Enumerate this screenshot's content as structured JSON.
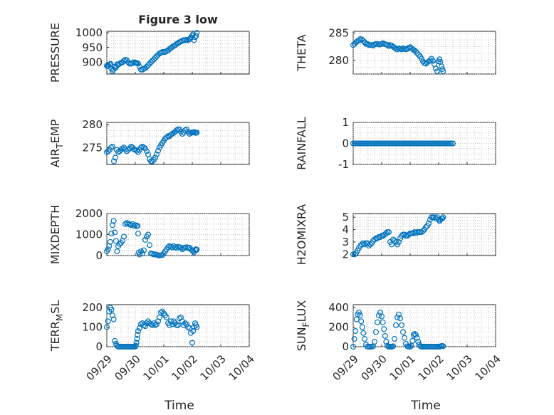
{
  "chart_data": [
    {
      "id": "pressure",
      "type": "scatter",
      "title": "Figure 3 low",
      "ylabel": "PRESSURE",
      "ylabel_sub": "",
      "xlabel": "",
      "ylim": [
        860,
        1005
      ],
      "yticks": [
        900,
        950,
        1000
      ],
      "xlim": [
        0,
        5
      ],
      "xtick_labels": [],
      "grid": true,
      "x": [
        0,
        0.03,
        0.06,
        0.1,
        0.13,
        0.16,
        0.2,
        0.23,
        0.27,
        0.3,
        0.33,
        0.37,
        0.4,
        0.45,
        0.5,
        0.55,
        0.6,
        0.65,
        0.7,
        0.75,
        0.8,
        0.85,
        0.9,
        0.95,
        1.0,
        1.03,
        1.07,
        1.1,
        1.15,
        1.2,
        1.25,
        1.3,
        1.35,
        1.4,
        1.45,
        1.5,
        1.55,
        1.6,
        1.65,
        1.7,
        1.75,
        1.8,
        1.85,
        1.9,
        1.95,
        2.0,
        2.05,
        2.1,
        2.15,
        2.2,
        2.25,
        2.3,
        2.35,
        2.4,
        2.45,
        2.5,
        2.55,
        2.6,
        2.65,
        2.7,
        2.75,
        2.8,
        2.85,
        2.9,
        2.93,
        2.96,
        3.0,
        3.03,
        3.06,
        3.1,
        3.13,
        3.16
      ],
      "y": [
        888,
        887,
        888,
        892,
        895,
        878,
        870,
        875,
        885,
        880,
        885,
        893,
        892,
        895,
        898,
        900,
        905,
        908,
        907,
        900,
        895,
        895,
        897,
        900,
        899,
        898,
        897,
        895,
        885,
        875,
        875,
        878,
        880,
        885,
        890,
        895,
        900,
        905,
        910,
        915,
        920,
        925,
        930,
        932,
        935,
        935,
        935,
        938,
        940,
        945,
        948,
        952,
        955,
        958,
        962,
        965,
        968,
        970,
        973,
        975,
        975,
        976,
        975,
        978,
        980,
        985,
        990,
        995,
        975,
        985,
        990,
        1000
      ]
    },
    {
      "id": "theta",
      "type": "scatter",
      "title": "",
      "ylabel": "THETA",
      "ylabel_sub": "",
      "xlabel": "",
      "ylim": [
        277.5,
        285.3
      ],
      "yticks": [
        280,
        285
      ],
      "xlim": [
        0,
        5
      ],
      "xtick_labels": [],
      "grid": true,
      "x": [
        0,
        0.05,
        0.1,
        0.15,
        0.2,
        0.25,
        0.3,
        0.35,
        0.4,
        0.45,
        0.5,
        0.55,
        0.6,
        0.65,
        0.7,
        0.75,
        0.8,
        0.85,
        0.9,
        0.95,
        1.0,
        1.05,
        1.1,
        1.15,
        1.2,
        1.25,
        1.3,
        1.35,
        1.4,
        1.45,
        1.5,
        1.55,
        1.6,
        1.65,
        1.7,
        1.75,
        1.8,
        1.85,
        1.9,
        1.95,
        2.0,
        2.05,
        2.1,
        2.15,
        2.2,
        2.25,
        2.3,
        2.35,
        2.4,
        2.45,
        2.5,
        2.55,
        2.6,
        2.65,
        2.7,
        2.75,
        2.8,
        2.85,
        2.9,
        2.95,
        3.0,
        3.03,
        3.06,
        3.1,
        3.13,
        3.16
      ],
      "y": [
        282.8,
        283.0,
        283.3,
        283.5,
        283.6,
        283.9,
        283.8,
        283.6,
        283.3,
        283.0,
        283.0,
        282.8,
        282.8,
        282.8,
        282.7,
        282.9,
        283.0,
        283.0,
        282.9,
        282.9,
        283.0,
        283.1,
        283.0,
        282.9,
        282.8,
        282.6,
        282.8,
        282.7,
        282.5,
        282.3,
        282.1,
        282.0,
        282.2,
        282.1,
        282.0,
        282.2,
        282.1,
        282.0,
        282.1,
        282.3,
        282.4,
        282.2,
        282.0,
        281.8,
        281.6,
        281.3,
        281.0,
        280.7,
        280.3,
        279.8,
        279.5,
        279.4,
        279.6,
        279.8,
        280.0,
        280.3,
        279.9,
        279.3,
        278.5,
        278.0,
        279.8,
        280.2,
        279.7,
        278.9,
        278.4,
        278.0
      ]
    },
    {
      "id": "air_temp",
      "type": "scatter",
      "title": "",
      "ylabel": "AIR",
      "ylabel_sub": "T",
      "ylabel_tail": "EMP",
      "xlabel": "",
      "ylim": [
        271.3,
        280.5
      ],
      "yticks": [
        275,
        280
      ],
      "xlim": [
        0,
        5
      ],
      "xtick_labels": [],
      "grid": true,
      "x": [
        0,
        0.05,
        0.1,
        0.15,
        0.2,
        0.25,
        0.3,
        0.35,
        0.4,
        0.45,
        0.5,
        0.55,
        0.6,
        0.65,
        0.7,
        0.75,
        0.8,
        0.85,
        0.9,
        0.95,
        1.0,
        1.05,
        1.1,
        1.15,
        1.2,
        1.25,
        1.3,
        1.35,
        1.4,
        1.45,
        1.5,
        1.55,
        1.6,
        1.65,
        1.7,
        1.75,
        1.8,
        1.85,
        1.9,
        1.95,
        2.0,
        2.05,
        2.1,
        2.15,
        2.2,
        2.25,
        2.3,
        2.35,
        2.4,
        2.45,
        2.5,
        2.55,
        2.6,
        2.65,
        2.7,
        2.75,
        2.8,
        2.85,
        2.9,
        2.95,
        3.0,
        3.03,
        3.06,
        3.1,
        3.13,
        3.16
      ],
      "y": [
        274.0,
        274.2,
        274.5,
        275.0,
        275.2,
        272.0,
        272.8,
        274.5,
        274.0,
        274.2,
        274.5,
        274.8,
        275.0,
        274.6,
        274.2,
        274.5,
        274.8,
        275.2,
        275.0,
        274.6,
        274.5,
        274.3,
        274.0,
        274.5,
        275.0,
        275.2,
        275.0,
        274.8,
        274.2,
        273.5,
        272.5,
        272.0,
        272.0,
        272.3,
        272.8,
        273.5,
        274.3,
        275.0,
        275.5,
        276.0,
        276.5,
        277.0,
        277.2,
        277.5,
        277.5,
        277.8,
        278.0,
        278.2,
        278.5,
        278.8,
        279.0,
        279.0,
        278.5,
        278.0,
        278.3,
        278.8,
        279.0,
        278.5,
        278.0,
        278.2,
        278.3,
        278.3,
        278.4,
        278.3,
        278.2,
        278.3
      ]
    },
    {
      "id": "rainfall",
      "type": "scatter",
      "title": "",
      "ylabel": "RAINFALL",
      "ylabel_sub": "",
      "xlabel": "",
      "ylim": [
        -1,
        1
      ],
      "yticks": [
        -1,
        0,
        1
      ],
      "xlim": [
        0,
        5
      ],
      "xtick_labels": [],
      "grid": true,
      "x": [
        0,
        0.05,
        0.1,
        0.15,
        0.2,
        0.25,
        0.3,
        0.35,
        0.4,
        0.45,
        0.5,
        0.55,
        0.6,
        0.65,
        0.7,
        0.75,
        0.8,
        0.85,
        0.9,
        0.95,
        1.0,
        1.05,
        1.1,
        1.15,
        1.2,
        1.25,
        1.3,
        1.35,
        1.4,
        1.45,
        1.5,
        1.55,
        1.6,
        1.65,
        1.7,
        1.75,
        1.8,
        1.85,
        1.9,
        1.95,
        2.0,
        2.05,
        2.1,
        2.15,
        2.2,
        2.25,
        2.3,
        2.35,
        2.4,
        2.45,
        2.5,
        2.55,
        2.6,
        2.65,
        2.7,
        2.75,
        2.8,
        2.85,
        2.9,
        2.95,
        3.0,
        3.05,
        3.1,
        3.15,
        3.2,
        3.25,
        3.3,
        3.35,
        3.4,
        3.45,
        3.5
      ],
      "y": [
        0,
        0,
        0,
        0,
        0,
        0,
        0,
        0,
        0,
        0,
        0,
        0,
        0,
        0,
        0,
        0,
        0,
        0,
        0,
        0,
        0,
        0,
        0,
        0,
        0,
        0,
        0,
        0,
        0,
        0,
        0,
        0,
        0,
        0,
        0,
        0,
        0,
        0,
        0,
        0,
        0,
        0,
        0,
        0,
        0,
        0,
        0,
        0,
        0,
        0,
        0,
        0,
        0,
        0,
        0,
        0,
        0,
        0,
        0,
        0,
        0,
        0,
        0,
        0,
        0,
        0,
        0,
        0,
        0,
        0,
        0
      ]
    },
    {
      "id": "mixdepth",
      "type": "scatter",
      "title": "",
      "ylabel": "MIXDEPTH",
      "ylabel_sub": "",
      "xlabel": "",
      "ylim": [
        0,
        2000
      ],
      "yticks": [
        0,
        1000,
        2000
      ],
      "xlim": [
        0,
        5
      ],
      "xtick_labels": [],
      "grid": true,
      "x": [
        0,
        0.04,
        0.08,
        0.12,
        0.16,
        0.2,
        0.24,
        0.28,
        0.32,
        0.36,
        0.4,
        0.45,
        0.5,
        0.55,
        0.6,
        0.65,
        0.7,
        0.75,
        0.8,
        0.85,
        0.9,
        0.95,
        1.0,
        1.05,
        1.08,
        1.1,
        1.12,
        1.15,
        1.2,
        1.25,
        1.3,
        1.35,
        1.4,
        1.45,
        1.5,
        1.55,
        1.6,
        1.65,
        1.7,
        1.75,
        1.8,
        1.85,
        1.9,
        1.95,
        2.0,
        2.05,
        2.1,
        2.15,
        2.2,
        2.25,
        2.3,
        2.35,
        2.4,
        2.45,
        2.5,
        2.55,
        2.6,
        2.65,
        2.7,
        2.75,
        2.8,
        2.85,
        2.9,
        2.95,
        3.0,
        3.03,
        3.06,
        3.1,
        3.13,
        3.16
      ],
      "y": [
        200,
        300,
        450,
        650,
        1050,
        1450,
        1650,
        1100,
        700,
        200,
        450,
        550,
        600,
        700,
        900,
        1500,
        1550,
        1520,
        1480,
        1450,
        1500,
        1420,
        1450,
        1400,
        1420,
        1050,
        150,
        50,
        200,
        100,
        250,
        750,
        900,
        1000,
        500,
        100,
        80,
        50,
        60,
        40,
        20,
        0,
        10,
        30,
        100,
        200,
        300,
        400,
        450,
        420,
        380,
        450,
        400,
        350,
        420,
        400,
        380,
        300,
        350,
        380,
        400,
        350,
        380,
        300,
        250,
        200,
        150,
        250,
        300,
        280
      ]
    },
    {
      "id": "h2omixra",
      "type": "scatter",
      "title": "",
      "ylabel": "H2OMIXRA",
      "ylabel_sub": "",
      "xlabel": "",
      "ylim": [
        1.9,
        5.3
      ],
      "yticks": [
        2,
        3,
        4,
        5
      ],
      "xlim": [
        0,
        5
      ],
      "xtick_labels": [],
      "grid": true,
      "x": [
        0,
        0.05,
        0.1,
        0.15,
        0.2,
        0.25,
        0.3,
        0.35,
        0.4,
        0.45,
        0.5,
        0.55,
        0.6,
        0.65,
        0.7,
        0.75,
        0.8,
        0.85,
        0.9,
        0.95,
        1.0,
        1.05,
        1.1,
        1.15,
        1.2,
        1.25,
        1.3,
        1.35,
        1.4,
        1.45,
        1.5,
        1.55,
        1.6,
        1.65,
        1.7,
        1.75,
        1.8,
        1.85,
        1.9,
        1.95,
        2.0,
        2.05,
        2.1,
        2.15,
        2.2,
        2.25,
        2.3,
        2.35,
        2.4,
        2.45,
        2.5,
        2.55,
        2.6,
        2.65,
        2.7,
        2.75,
        2.8,
        2.85,
        2.9,
        2.95,
        3.0,
        3.03,
        3.06,
        3.1,
        3.13,
        3.16
      ],
      "y": [
        2.0,
        2.0,
        2.1,
        2.3,
        2.5,
        2.7,
        2.8,
        2.9,
        2.8,
        2.9,
        2.9,
        2.7,
        2.8,
        2.9,
        3.1,
        3.2,
        3.3,
        3.3,
        3.4,
        3.4,
        3.5,
        3.5,
        3.6,
        3.7,
        3.8,
        3.8,
        3.0,
        2.8,
        3.2,
        3.1,
        3.0,
        2.8,
        3.0,
        3.3,
        3.5,
        3.6,
        3.6,
        3.5,
        3.5,
        3.6,
        3.7,
        3.7,
        3.7,
        3.8,
        3.7,
        3.8,
        3.8,
        3.8,
        3.8,
        3.9,
        4.0,
        4.2,
        4.3,
        4.5,
        4.8,
        5.0,
        5.0,
        5.0,
        4.9,
        5.0,
        4.8,
        4.7,
        4.8,
        4.9,
        4.9,
        5.0
      ]
    },
    {
      "id": "terr_msl",
      "type": "scatter",
      "title": "",
      "ylabel": "TERR",
      "ylabel_sub": "M",
      "ylabel_tail": "SL",
      "xlabel": "Time",
      "ylim": [
        0,
        215
      ],
      "yticks": [
        0,
        100,
        200
      ],
      "xlim": [
        0,
        5
      ],
      "xtick_labels": [
        "09/29",
        "09/30",
        "10/01",
        "10/02",
        "10/03",
        "10/04"
      ],
      "grid": true,
      "x": [
        0,
        0.04,
        0.08,
        0.12,
        0.16,
        0.2,
        0.24,
        0.28,
        0.32,
        0.36,
        0.4,
        0.45,
        0.5,
        0.55,
        0.6,
        0.65,
        0.7,
        0.75,
        0.8,
        0.85,
        0.9,
        0.95,
        1.0,
        1.02,
        1.04,
        1.06,
        1.08,
        1.1,
        1.15,
        1.2,
        1.25,
        1.3,
        1.35,
        1.4,
        1.45,
        1.5,
        1.55,
        1.6,
        1.65,
        1.7,
        1.75,
        1.8,
        1.85,
        1.9,
        1.95,
        2.0,
        2.05,
        2.1,
        2.15,
        2.2,
        2.25,
        2.3,
        2.35,
        2.4,
        2.45,
        2.5,
        2.55,
        2.6,
        2.65,
        2.7,
        2.75,
        2.8,
        2.85,
        2.9,
        2.95,
        3.0,
        3.03,
        3.06,
        3.1,
        3.13,
        3.16
      ],
      "y": [
        100,
        130,
        180,
        200,
        190,
        160,
        140,
        30,
        15,
        5,
        0,
        0,
        0,
        0,
        0,
        0,
        0,
        0,
        0,
        0,
        0,
        0,
        0,
        5,
        20,
        40,
        60,
        80,
        95,
        115,
        120,
        110,
        105,
        120,
        130,
        120,
        115,
        110,
        120,
        110,
        115,
        130,
        150,
        175,
        180,
        170,
        160,
        150,
        120,
        110,
        130,
        115,
        130,
        120,
        110,
        110,
        145,
        150,
        130,
        110,
        120,
        115,
        100,
        95,
        70,
        20,
        80,
        100,
        120,
        110,
        100
      ]
    },
    {
      "id": "sun_flux",
      "type": "scatter",
      "title": "",
      "ylabel": "SUN",
      "ylabel_sub": "F",
      "ylabel_tail": "LUX",
      "xlabel": "Time",
      "ylim": [
        0,
        430
      ],
      "yticks": [
        0,
        200,
        400
      ],
      "xlim": [
        0,
        5
      ],
      "xtick_labels": [
        "09/29",
        "09/30",
        "10/01",
        "10/02",
        "10/03",
        "10/04"
      ],
      "grid": true,
      "x": [
        0,
        0.04,
        0.08,
        0.12,
        0.16,
        0.2,
        0.24,
        0.28,
        0.32,
        0.36,
        0.4,
        0.45,
        0.5,
        0.55,
        0.6,
        0.65,
        0.7,
        0.75,
        0.8,
        0.85,
        0.9,
        0.95,
        1.0,
        1.04,
        1.08,
        1.12,
        1.16,
        1.2,
        1.24,
        1.28,
        1.32,
        1.36,
        1.4,
        1.45,
        1.5,
        1.55,
        1.6,
        1.65,
        1.7,
        1.75,
        1.8,
        1.85,
        1.9,
        1.95,
        2.0,
        2.04,
        2.08,
        2.12,
        2.16,
        2.2,
        2.24,
        2.28,
        2.32,
        2.36,
        2.4,
        2.45,
        2.5,
        2.55,
        2.6,
        2.65,
        2.7,
        2.75,
        2.8,
        2.85,
        2.9,
        2.95,
        3.0,
        3.04,
        3.08,
        3.12,
        3.16
      ],
      "y": [
        0,
        80,
        160,
        280,
        330,
        350,
        320,
        260,
        200,
        140,
        80,
        20,
        0,
        0,
        0,
        0,
        5,
        50,
        150,
        250,
        320,
        350,
        310,
        250,
        180,
        110,
        50,
        10,
        0,
        0,
        0,
        0,
        5,
        80,
        220,
        300,
        330,
        290,
        220,
        150,
        90,
        30,
        5,
        0,
        0,
        10,
        60,
        120,
        130,
        120,
        90,
        50,
        20,
        5,
        0,
        0,
        0,
        0,
        0,
        0,
        0,
        0,
        0,
        0,
        0,
        0,
        0,
        0,
        5,
        8,
        5
      ]
    }
  ]
}
